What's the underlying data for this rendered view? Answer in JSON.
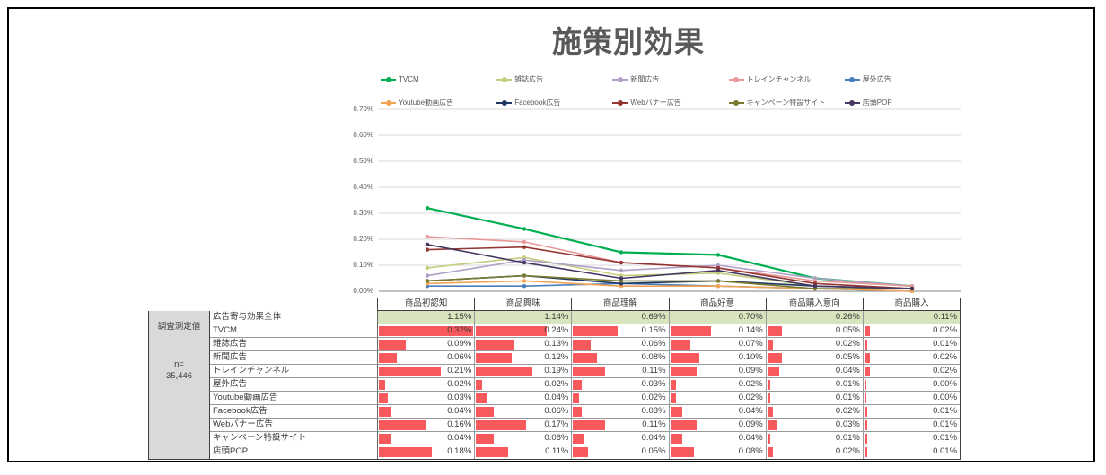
{
  "title": "施策別効果",
  "colors": {
    "bar": "#F8595C",
    "total_row_bg": "#D7E4BD",
    "left_block_bg": "#D9D9D9",
    "grid": "#D9D9D9",
    "axis": "#808080",
    "tick_text": "#595959"
  },
  "chart_data": {
    "type": "line",
    "title": "施策別効果",
    "categories": [
      "商品初認知",
      "商品興味",
      "商品理解",
      "商品好意",
      "商品購入意向",
      "商品購入"
    ],
    "ylim": [
      0,
      0.7
    ],
    "unit": "%",
    "grid": true,
    "legend_position": "top",
    "y_tick_labels": [
      "0.00%",
      "0.10%",
      "0.20%",
      "0.30%",
      "0.40%",
      "0.50%",
      "0.60%",
      "0.70%"
    ],
    "series": [
      {
        "name": "TVCM",
        "color": "#00B050",
        "values": [
          0.32,
          0.24,
          0.15,
          0.14,
          0.05,
          0.02
        ]
      },
      {
        "name": "雑誌広告",
        "color": "#C4CC7E",
        "values": [
          0.09,
          0.13,
          0.06,
          0.07,
          0.02,
          0.01
        ]
      },
      {
        "name": "新聞広告",
        "color": "#B1A0C7",
        "values": [
          0.06,
          0.12,
          0.08,
          0.1,
          0.05,
          0.02
        ]
      },
      {
        "name": "トレインチャンネル",
        "color": "#E89898",
        "values": [
          0.21,
          0.19,
          0.11,
          0.09,
          0.04,
          0.02
        ]
      },
      {
        "name": "屋外広告",
        "color": "#4A7EBB",
        "values": [
          0.02,
          0.02,
          0.03,
          0.02,
          0.01,
          0.0
        ]
      },
      {
        "name": "Youtube動画広告",
        "color": "#F2A454",
        "values": [
          0.03,
          0.04,
          0.02,
          0.02,
          0.01,
          0.0
        ]
      },
      {
        "name": "Facebook広告",
        "color": "#1F3864",
        "values": [
          0.04,
          0.06,
          0.03,
          0.04,
          0.02,
          0.01
        ]
      },
      {
        "name": "Webバナー広告",
        "color": "#943634",
        "values": [
          0.16,
          0.17,
          0.11,
          0.09,
          0.03,
          0.01
        ]
      },
      {
        "name": "キャンペーン特設サイト",
        "color": "#7A7A2F",
        "values": [
          0.04,
          0.06,
          0.04,
          0.04,
          0.01,
          0.01
        ]
      },
      {
        "name": "店頭POP",
        "color": "#453760",
        "values": [
          0.18,
          0.11,
          0.05,
          0.08,
          0.02,
          0.01
        ]
      }
    ]
  },
  "table": {
    "row_group_label": "調査測定値",
    "n_label": "n=",
    "n_value": "35,446",
    "columns": [
      "商品初認知",
      "商品興味",
      "商品理解",
      "商品好意",
      "商品購入意向",
      "商品購入"
    ],
    "total_row": {
      "label": "広告寄与効果全体",
      "values": [
        1.15,
        1.14,
        0.69,
        0.7,
        0.26,
        0.11
      ]
    },
    "bar_max": 0.32
  }
}
